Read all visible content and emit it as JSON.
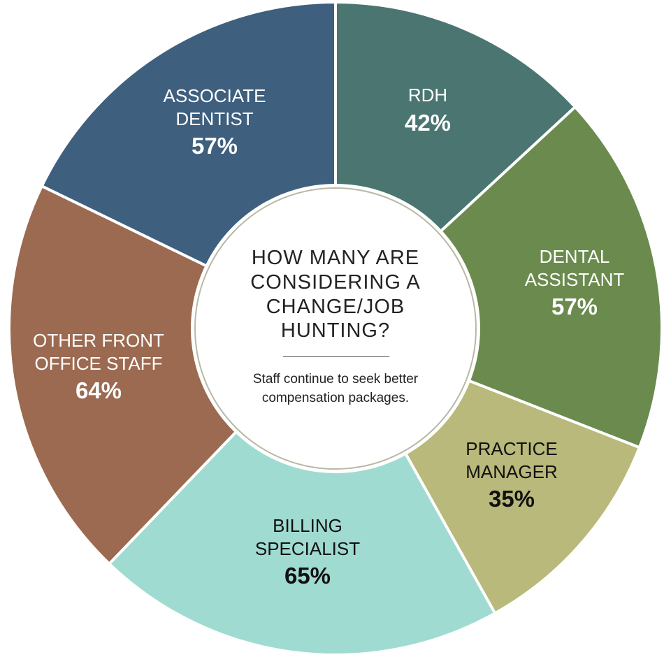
{
  "chart_data": {
    "type": "donut",
    "title": "HOW MANY ARE CONSIDERING A CHANGE/JOB HUNTING?",
    "subtitle": "Staff continue to seek better compensation packages.",
    "categories": [
      "RDH",
      "DENTAL ASSISTANT",
      "PRACTICE MANAGER",
      "BILLING SPECIALIST",
      "OTHER FRONT OFFICE STAFF",
      "ASSOCIATE DENTIST"
    ],
    "values": [
      42,
      57,
      35,
      65,
      64,
      57
    ],
    "value_labels": [
      "42%",
      "57%",
      "35%",
      "65%",
      "64%",
      "57%"
    ],
    "colors": [
      "#4a7571",
      "#6b8a4e",
      "#b8b97a",
      "#a0dbd1",
      "#9b6a51",
      "#3e5f7e"
    ],
    "label_colors": [
      "#ffffff",
      "#ffffff",
      "#111111",
      "#111111",
      "#ffffff",
      "#ffffff"
    ]
  }
}
